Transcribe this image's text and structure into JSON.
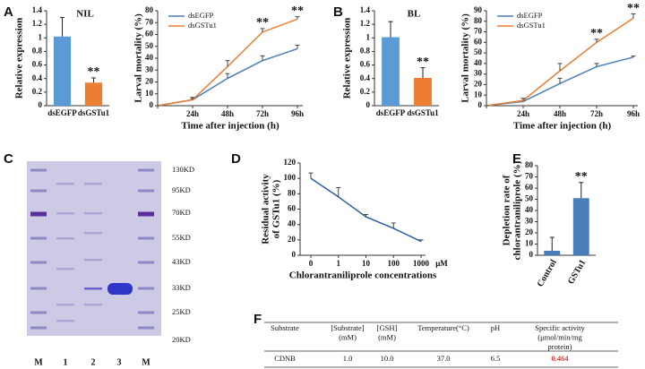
{
  "panel_labels": [
    "A",
    "B",
    "C",
    "D",
    "E",
    "F"
  ],
  "chart_data": [
    {
      "type": "bar",
      "title": "NIL",
      "ylabel": "Relative expression",
      "categories": [
        "dsEGFP",
        "dsGSTu1"
      ],
      "values": [
        1.02,
        0.34
      ],
      "errors": [
        0.28,
        0.07
      ],
      "colors": [
        "#5b9bd5",
        "#ed7d31"
      ],
      "annotations": [
        null,
        "**"
      ],
      "ylim": [
        0,
        1.4
      ],
      "yticks": [
        0,
        0.2,
        0.4,
        0.6,
        0.8,
        1,
        1.2,
        1.4
      ]
    },
    {
      "type": "line",
      "ylabel": "Larval mortality (%)",
      "xlabel": "Time after injection (h)",
      "categories": [
        null,
        "24h",
        "48h",
        "72h",
        "96h"
      ],
      "series": [
        {
          "name": "dsEGFP",
          "color": "#4a7ebb",
          "values": [
            0,
            5,
            23,
            38,
            48
          ],
          "errors": [
            0,
            1,
            4,
            4,
            3
          ]
        },
        {
          "name": "dsGSTu1",
          "color": "#ed7d31",
          "values": [
            0,
            5,
            33,
            62,
            73
          ],
          "errors": [
            0,
            2,
            5,
            3,
            2
          ],
          "annotations": [
            null,
            null,
            null,
            "**",
            "**"
          ]
        }
      ],
      "legend": "upper left",
      "ylim": [
        0,
        80
      ],
      "yticks": [
        0,
        10,
        20,
        30,
        40,
        50,
        60,
        70,
        80
      ]
    },
    {
      "type": "bar",
      "title": "BL",
      "ylabel": "Relative expression",
      "categories": [
        "dsEGFP",
        "dsGSTu1"
      ],
      "values": [
        1.01,
        0.41
      ],
      "errors": [
        0.23,
        0.15
      ],
      "colors": [
        "#5b9bd5",
        "#ed7d31"
      ],
      "annotations": [
        null,
        "**"
      ],
      "ylim": [
        0,
        1.4
      ],
      "yticks": [
        0,
        0.2,
        0.4,
        0.6,
        0.8,
        1,
        1.2,
        1.4
      ]
    },
    {
      "type": "line",
      "ylabel": "Larval mortality (%)",
      "xlabel": "Time after injection (h)",
      "categories": [
        null,
        "24h",
        "48h",
        "72h",
        "96h"
      ],
      "series": [
        {
          "name": "dsEGFP",
          "color": "#4a7ebb",
          "values": [
            0,
            4,
            21,
            37,
            46
          ],
          "errors": [
            0,
            1,
            5,
            3,
            1
          ]
        },
        {
          "name": "dsGSTu1",
          "color": "#ed7d31",
          "values": [
            0,
            5,
            33,
            60,
            83
          ],
          "errors": [
            0,
            2,
            7,
            3,
            4
          ],
          "annotations": [
            null,
            null,
            null,
            "**",
            "**"
          ]
        }
      ],
      "legend": "upper left",
      "ylim": [
        0,
        90
      ],
      "yticks": [
        0,
        10,
        20,
        30,
        40,
        50,
        60,
        70,
        80,
        90
      ]
    },
    {
      "type": "line",
      "ylabel": [
        "Residual activity",
        "of GSTu1 (%)"
      ],
      "xlabel": "Chlorantraniliprole concentrations",
      "x_unit": "μM",
      "categories": [
        "0",
        "1",
        "10",
        "100",
        "1000"
      ],
      "values": [
        100,
        76,
        50,
        35,
        18
      ],
      "errors": [
        7,
        12,
        3,
        7,
        2
      ],
      "color": "#2e5ea8",
      "ylim": [
        0,
        120
      ],
      "yticks": [
        0,
        20,
        40,
        60,
        80,
        100,
        120
      ]
    },
    {
      "type": "bar",
      "ylabel": [
        "Depletion rate of",
        "chlorantraniliprole (%)"
      ],
      "categories": [
        "Control",
        "GSTu1"
      ],
      "values": [
        4,
        51
      ],
      "errors": [
        12,
        14
      ],
      "colors": [
        "#4a7ebb",
        "#4a7ebb"
      ],
      "annotations": [
        null,
        "**"
      ],
      "ylim": [
        0,
        80
      ],
      "yticks": [
        0,
        10,
        20,
        30,
        40,
        50,
        60,
        70,
        80
      ]
    }
  ],
  "gel": {
    "markers": [
      "130KD",
      "95KD",
      "70KD",
      "55KD",
      "43KD",
      "33KD",
      "25KD",
      "20KD"
    ],
    "lanes": [
      "M",
      "1",
      "2",
      "3",
      "M"
    ]
  },
  "table": {
    "columns": [
      [
        "Substrate"
      ],
      [
        "[Substrate]",
        "(mM)"
      ],
      [
        "[GSH]",
        "(mM)"
      ],
      [
        "Temperature(°C)"
      ],
      [
        "pH"
      ],
      [
        "Specific activity",
        "(μmol/min/mg",
        "protein)"
      ]
    ],
    "rows": [
      [
        "CDNB",
        "1.0",
        "10.0",
        "37.0",
        "6.5",
        "0.464"
      ]
    ]
  }
}
